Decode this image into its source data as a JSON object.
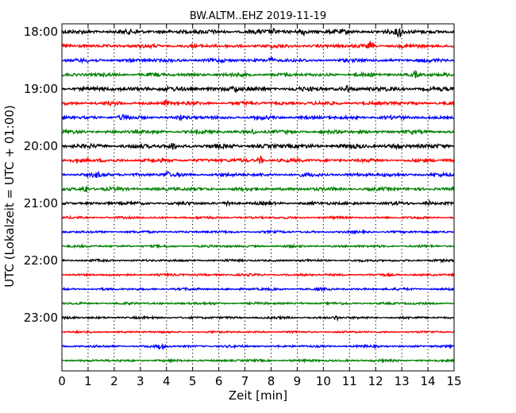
{
  "chart_data": {
    "type": "line",
    "title": "BW.ALTM..EHZ 2019-11-19",
    "xlabel": "Zeit  [min]",
    "ylabel": "UTC (Lokalzeit = UTC + 01:00)",
    "xlim": [
      0,
      15
    ],
    "x_ticks": [
      "0",
      "1",
      "2",
      "3",
      "4",
      "5",
      "6",
      "7",
      "8",
      "9",
      "10",
      "11",
      "12",
      "13",
      "14",
      "15"
    ],
    "y_ticks": [
      "18:00",
      "19:00",
      "20:00",
      "21:00",
      "22:00",
      "23:00"
    ],
    "grid": "vertical dotted",
    "trace_colors": [
      "#000000",
      "#ff0000",
      "#0000ff",
      "#008000"
    ],
    "traces": [
      {
        "start": "18:00",
        "amplitude": 2.2,
        "events": [
          [
            8.1,
            2
          ],
          [
            9.2,
            3.5
          ],
          [
            12.9,
            6
          ]
        ]
      },
      {
        "start": "18:15",
        "amplitude": 1.8,
        "events": [
          [
            11.8,
            3.5
          ]
        ]
      },
      {
        "start": "18:30",
        "amplitude": 1.8,
        "events": [
          [
            8.0,
            2.5
          ]
        ]
      },
      {
        "start": "18:45",
        "amplitude": 1.8,
        "events": [
          [
            13.5,
            3
          ]
        ]
      },
      {
        "start": "19:00",
        "amplitude": 2.2,
        "events": [
          [
            3.2,
            2
          ],
          [
            6.6,
            3
          ],
          [
            10.9,
            3.5
          ]
        ]
      },
      {
        "start": "19:15",
        "amplitude": 1.8,
        "events": [
          [
            4.0,
            2.5
          ]
        ]
      },
      {
        "start": "19:30",
        "amplitude": 1.8,
        "events": [
          [
            2.3,
            2
          ],
          [
            4.5,
            2
          ]
        ]
      },
      {
        "start": "19:45",
        "amplitude": 1.8,
        "events": [
          [
            7.3,
            2
          ]
        ]
      },
      {
        "start": "20:00",
        "amplitude": 2.2,
        "events": [
          [
            4.2,
            3.5
          ],
          [
            12.8,
            2.5
          ]
        ]
      },
      {
        "start": "20:15",
        "amplitude": 1.8,
        "events": [
          [
            7.6,
            4.5
          ]
        ]
      },
      {
        "start": "20:30",
        "amplitude": 1.8,
        "events": [
          [
            1.3,
            2.5
          ],
          [
            4.0,
            3
          ]
        ]
      },
      {
        "start": "20:45",
        "amplitude": 1.8,
        "events": [
          [
            0.9,
            4.5
          ]
        ]
      },
      {
        "start": "21:00",
        "amplitude": 1.6,
        "events": [
          [
            6.4,
            3
          ],
          [
            14.0,
            3
          ]
        ]
      },
      {
        "start": "21:15",
        "amplitude": 1.2,
        "events": []
      },
      {
        "start": "21:30",
        "amplitude": 1.2,
        "events": []
      },
      {
        "start": "21:45",
        "amplitude": 1.2,
        "events": []
      },
      {
        "start": "22:00",
        "amplitude": 1.2,
        "events": []
      },
      {
        "start": "22:15",
        "amplitude": 1.2,
        "events": []
      },
      {
        "start": "22:30",
        "amplitude": 1.2,
        "events": []
      },
      {
        "start": "22:45",
        "amplitude": 1.2,
        "events": []
      },
      {
        "start": "23:00",
        "amplitude": 1.2,
        "events": [
          [
            10.5,
            2
          ]
        ]
      },
      {
        "start": "23:15",
        "amplitude": 1.0,
        "events": []
      },
      {
        "start": "23:30",
        "amplitude": 1.2,
        "events": [
          [
            3.8,
            3
          ]
        ]
      },
      {
        "start": "23:45",
        "amplitude": 1.2,
        "events": []
      }
    ]
  }
}
